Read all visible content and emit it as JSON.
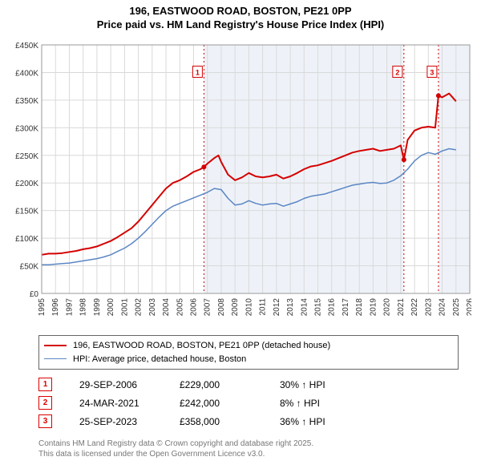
{
  "title_line1": "196, EASTWOOD ROAD, BOSTON, PE21 0PP",
  "title_line2": "Price paid vs. HM Land Registry's House Price Index (HPI)",
  "chart": {
    "type": "line",
    "background_color": "#ffffff",
    "shaded_band_color": "#eef2f8",
    "grid_color": "#d9d9d9",
    "axis_color": "#333333",
    "label_fontsize": 11,
    "tick_fontsize": 10,
    "x_axis": {
      "min": 1995,
      "max": 2026,
      "ticks": [
        1995,
        1996,
        1997,
        1998,
        1999,
        2000,
        2001,
        2002,
        2003,
        2004,
        2005,
        2006,
        2007,
        2008,
        2009,
        2010,
        2011,
        2012,
        2013,
        2014,
        2015,
        2016,
        2017,
        2018,
        2019,
        2020,
        2021,
        2022,
        2023,
        2024,
        2025,
        2026
      ],
      "tick_label_rotation": -90
    },
    "y_axis": {
      "min": 0,
      "max": 450000,
      "ticks": [
        0,
        50000,
        100000,
        150000,
        200000,
        250000,
        300000,
        350000,
        400000,
        450000
      ],
      "tick_labels": [
        "£0",
        "£50K",
        "£100K",
        "£150K",
        "£200K",
        "£250K",
        "£300K",
        "£350K",
        "£400K",
        "£450K"
      ]
    },
    "series": [
      {
        "name": "price_paid",
        "label": "196, EASTWOOD ROAD, BOSTON, PE21 0PP (detached house)",
        "color": "#d40000",
        "line_width": 2,
        "data": [
          [
            1995.0,
            70000
          ],
          [
            1995.5,
            72000
          ],
          [
            1996.0,
            72000
          ],
          [
            1996.5,
            73000
          ],
          [
            1997.0,
            75000
          ],
          [
            1997.5,
            77000
          ],
          [
            1998.0,
            80000
          ],
          [
            1998.5,
            82000
          ],
          [
            1999.0,
            85000
          ],
          [
            1999.5,
            90000
          ],
          [
            2000.0,
            95000
          ],
          [
            2000.5,
            102000
          ],
          [
            2001.0,
            110000
          ],
          [
            2001.5,
            118000
          ],
          [
            2002.0,
            130000
          ],
          [
            2002.5,
            145000
          ],
          [
            2003.0,
            160000
          ],
          [
            2003.5,
            175000
          ],
          [
            2004.0,
            190000
          ],
          [
            2004.5,
            200000
          ],
          [
            2005.0,
            205000
          ],
          [
            2005.5,
            212000
          ],
          [
            2006.0,
            220000
          ],
          [
            2006.5,
            225000
          ],
          [
            2006.75,
            229000
          ],
          [
            2007.0,
            235000
          ],
          [
            2007.5,
            245000
          ],
          [
            2007.8,
            250000
          ],
          [
            2008.0,
            238000
          ],
          [
            2008.5,
            215000
          ],
          [
            2009.0,
            205000
          ],
          [
            2009.5,
            210000
          ],
          [
            2010.0,
            218000
          ],
          [
            2010.5,
            212000
          ],
          [
            2011.0,
            210000
          ],
          [
            2011.5,
            212000
          ],
          [
            2012.0,
            215000
          ],
          [
            2012.5,
            208000
          ],
          [
            2013.0,
            212000
          ],
          [
            2013.5,
            218000
          ],
          [
            2014.0,
            225000
          ],
          [
            2014.5,
            230000
          ],
          [
            2015.0,
            232000
          ],
          [
            2015.5,
            236000
          ],
          [
            2016.0,
            240000
          ],
          [
            2016.5,
            245000
          ],
          [
            2017.0,
            250000
          ],
          [
            2017.5,
            255000
          ],
          [
            2018.0,
            258000
          ],
          [
            2018.5,
            260000
          ],
          [
            2019.0,
            262000
          ],
          [
            2019.5,
            258000
          ],
          [
            2020.0,
            260000
          ],
          [
            2020.5,
            262000
          ],
          [
            2021.0,
            268000
          ],
          [
            2021.23,
            242000
          ],
          [
            2021.5,
            278000
          ],
          [
            2022.0,
            295000
          ],
          [
            2022.5,
            300000
          ],
          [
            2023.0,
            302000
          ],
          [
            2023.5,
            300000
          ],
          [
            2023.73,
            358000
          ],
          [
            2024.0,
            355000
          ],
          [
            2024.5,
            362000
          ],
          [
            2025.0,
            348000
          ]
        ]
      },
      {
        "name": "hpi",
        "label": "HPI: Average price, detached house, Boston",
        "color": "#5b86c4",
        "line_width": 1.5,
        "data": [
          [
            1995.0,
            52000
          ],
          [
            1995.5,
            52000
          ],
          [
            1996.0,
            53000
          ],
          [
            1996.5,
            54000
          ],
          [
            1997.0,
            55000
          ],
          [
            1997.5,
            57000
          ],
          [
            1998.0,
            59000
          ],
          [
            1998.5,
            61000
          ],
          [
            1999.0,
            63000
          ],
          [
            1999.5,
            66000
          ],
          [
            2000.0,
            70000
          ],
          [
            2000.5,
            76000
          ],
          [
            2001.0,
            82000
          ],
          [
            2001.5,
            90000
          ],
          [
            2002.0,
            100000
          ],
          [
            2002.5,
            112000
          ],
          [
            2003.0,
            125000
          ],
          [
            2003.5,
            138000
          ],
          [
            2004.0,
            150000
          ],
          [
            2004.5,
            158000
          ],
          [
            2005.0,
            163000
          ],
          [
            2005.5,
            168000
          ],
          [
            2006.0,
            173000
          ],
          [
            2006.5,
            178000
          ],
          [
            2007.0,
            183000
          ],
          [
            2007.5,
            190000
          ],
          [
            2008.0,
            188000
          ],
          [
            2008.5,
            172000
          ],
          [
            2009.0,
            160000
          ],
          [
            2009.5,
            162000
          ],
          [
            2010.0,
            168000
          ],
          [
            2010.5,
            163000
          ],
          [
            2011.0,
            160000
          ],
          [
            2011.5,
            162000
          ],
          [
            2012.0,
            163000
          ],
          [
            2012.5,
            158000
          ],
          [
            2013.0,
            162000
          ],
          [
            2013.5,
            166000
          ],
          [
            2014.0,
            172000
          ],
          [
            2014.5,
            176000
          ],
          [
            2015.0,
            178000
          ],
          [
            2015.5,
            180000
          ],
          [
            2016.0,
            184000
          ],
          [
            2016.5,
            188000
          ],
          [
            2017.0,
            192000
          ],
          [
            2017.5,
            196000
          ],
          [
            2018.0,
            198000
          ],
          [
            2018.5,
            200000
          ],
          [
            2019.0,
            201000
          ],
          [
            2019.5,
            199000
          ],
          [
            2020.0,
            200000
          ],
          [
            2020.5,
            205000
          ],
          [
            2021.0,
            213000
          ],
          [
            2021.5,
            225000
          ],
          [
            2022.0,
            240000
          ],
          [
            2022.5,
            250000
          ],
          [
            2023.0,
            255000
          ],
          [
            2023.5,
            252000
          ],
          [
            2024.0,
            258000
          ],
          [
            2024.5,
            262000
          ],
          [
            2025.0,
            260000
          ]
        ]
      }
    ],
    "event_markers": [
      {
        "id": "1",
        "x": 2006.75,
        "line_color": "#d40000",
        "label_y": 400000
      },
      {
        "id": "2",
        "x": 2021.23,
        "line_color": "#d40000",
        "label_y": 400000
      },
      {
        "id": "3",
        "x": 2023.73,
        "line_color": "#d40000",
        "label_y": 400000
      }
    ],
    "shaded_periods": [
      {
        "from": 2006.75,
        "to": 2021.23
      },
      {
        "from": 2023.73,
        "to": 2026.0
      }
    ]
  },
  "legend": {
    "items": [
      {
        "color": "#d40000",
        "label": "196, EASTWOOD ROAD, BOSTON, PE21 0PP (detached house)",
        "width": 2
      },
      {
        "color": "#5b86c4",
        "label": "HPI: Average price, detached house, Boston",
        "width": 1.5
      }
    ]
  },
  "events_table": {
    "rows": [
      {
        "num": "1",
        "date": "29-SEP-2006",
        "price": "£229,000",
        "delta": "30% ↑ HPI"
      },
      {
        "num": "2",
        "date": "24-MAR-2021",
        "price": "£242,000",
        "delta": "8% ↑ HPI"
      },
      {
        "num": "3",
        "date": "25-SEP-2023",
        "price": "£358,000",
        "delta": "36% ↑ HPI"
      }
    ]
  },
  "attribution": {
    "line1": "Contains HM Land Registry data © Crown copyright and database right 2025.",
    "line2": "This data is licensed under the Open Government Licence v3.0."
  }
}
